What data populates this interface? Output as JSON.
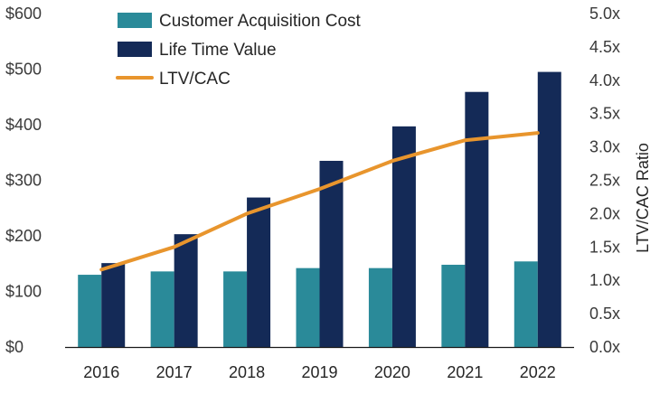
{
  "chart_data": {
    "type": "bar",
    "categories": [
      "2016",
      "2017",
      "2018",
      "2019",
      "2020",
      "2021",
      "2022"
    ],
    "series": [
      {
        "name": "Customer Acquisition Cost",
        "type": "bar",
        "axis": "left",
        "color": "#2a8a99",
        "values": [
          130,
          136,
          136,
          142,
          142,
          148,
          154
        ]
      },
      {
        "name": "Life Time Value",
        "type": "bar",
        "axis": "left",
        "color": "#142a57",
        "values": [
          151,
          203,
          269,
          335,
          397,
          459,
          495
        ]
      },
      {
        "name": "LTV/CAC",
        "type": "line",
        "axis": "right",
        "color": "#e8952d",
        "values": [
          1.16,
          1.5,
          2.0,
          2.37,
          2.79,
          3.1,
          3.21
        ]
      }
    ],
    "y_left": {
      "ylim": [
        0,
        600
      ],
      "ticks": [
        0,
        100,
        200,
        300,
        400,
        500,
        600
      ],
      "tick_labels": [
        "$0",
        "$100",
        "$200",
        "$300",
        "$400",
        "$500",
        "$600"
      ]
    },
    "y_right": {
      "label": "LTV/CAC Ratio",
      "ylim": [
        0,
        5
      ],
      "ticks": [
        0,
        0.5,
        1,
        1.5,
        2,
        2.5,
        3,
        3.5,
        4,
        4.5,
        5
      ],
      "tick_labels": [
        "0.0x",
        "0.5x",
        "1.0x",
        "1.5x",
        "2.0x",
        "2.5x",
        "3.0x",
        "3.5x",
        "4.0x",
        "4.5x",
        "5.0x"
      ]
    },
    "legend": "top-left",
    "grid": false,
    "axis_color": "#1a1a1a"
  }
}
